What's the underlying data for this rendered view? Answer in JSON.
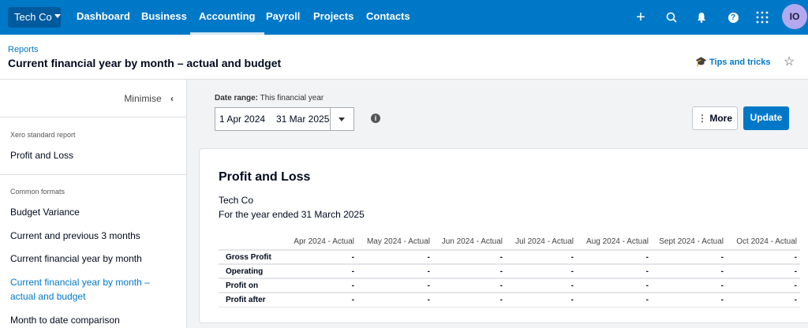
{
  "nav": {
    "org": "Tech Co",
    "items": [
      {
        "label": "Dashboard"
      },
      {
        "label": "Business"
      },
      {
        "label": "Accounting",
        "active": true
      },
      {
        "label": "Payroll"
      },
      {
        "label": "Projects"
      },
      {
        "label": "Contacts"
      }
    ],
    "avatar": "IO",
    "accent": "#0078c8"
  },
  "header": {
    "breadcrumb": "Reports",
    "title": "Current financial year by month – actual and budget",
    "tips": "Tips and tricks"
  },
  "sidebar": {
    "minimise": "Minimise",
    "section1": "Xero standard report",
    "standard": [
      "Profit and Loss"
    ],
    "section2": "Common formats",
    "formats": [
      "Budget Variance",
      "Current and previous 3 months",
      "Current financial year by month",
      "Current financial year by month – actual and budget",
      "Month to date comparison"
    ],
    "selected": "Current financial year by month – actual and budget"
  },
  "controls": {
    "date_label": "Date range:",
    "date_value": "This financial year",
    "from": "1 Apr 2024",
    "to": "31 Mar 2025",
    "more": "More",
    "update": "Update"
  },
  "report": {
    "title": "Profit and Loss",
    "org": "Tech Co",
    "period": "For the year ended 31 March 2025",
    "columns": [
      "Apr 2024 - Actual",
      "May 2024 - Actual",
      "Jun 2024 - Actual",
      "Jul 2024 - Actual",
      "Aug 2024 - Actual",
      "Sept 2024 - Actual",
      "Oct 2024 - Actual"
    ],
    "rows": [
      {
        "label": "Gross Profit",
        "values": [
          "-",
          "-",
          "-",
          "-",
          "-",
          "-",
          "-"
        ]
      },
      {
        "label": "Operating",
        "values": [
          "-",
          "-",
          "-",
          "-",
          "-",
          "-",
          "-"
        ]
      },
      {
        "label": "Profit on",
        "values": [
          "-",
          "-",
          "-",
          "-",
          "-",
          "-",
          "-"
        ]
      },
      {
        "label": "Profit after",
        "values": [
          "-",
          "-",
          "-",
          "-",
          "-",
          "-",
          "-"
        ]
      }
    ]
  }
}
